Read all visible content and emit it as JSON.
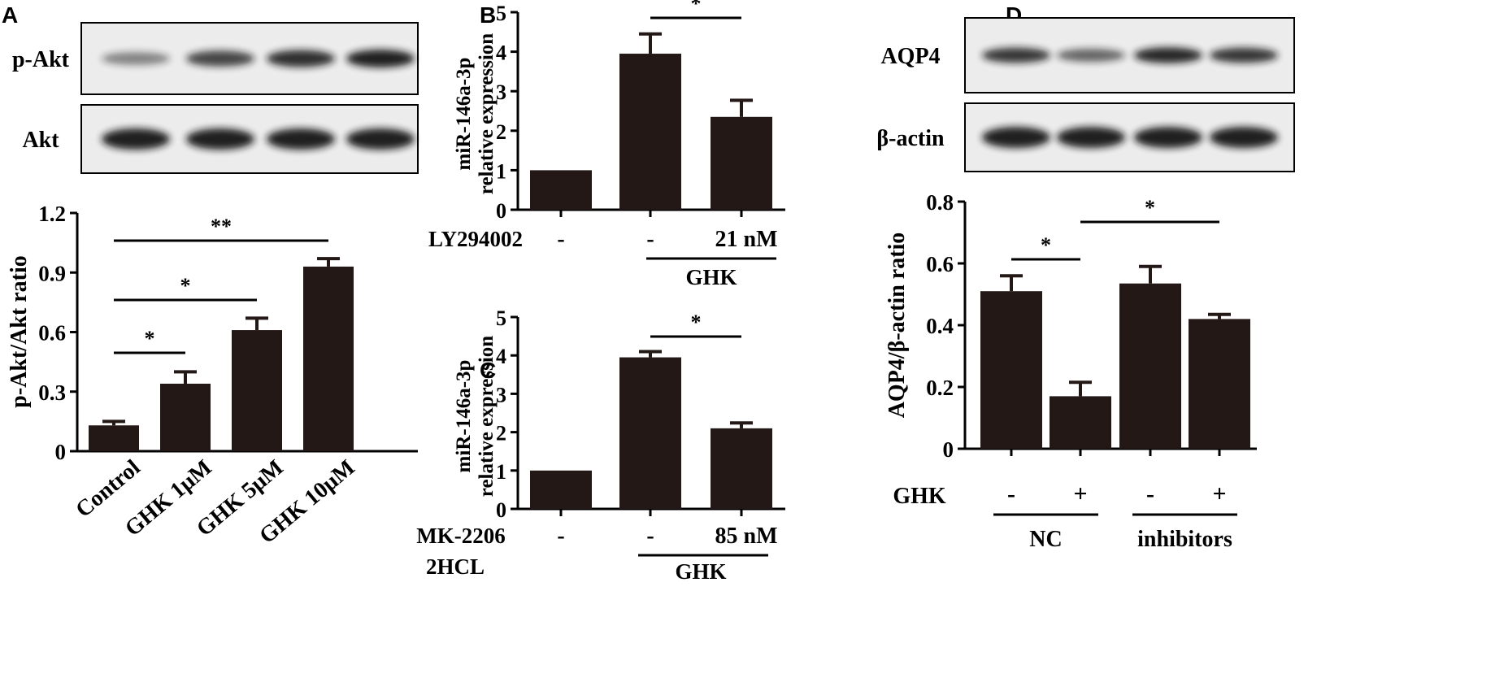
{
  "panels": {
    "A": "A",
    "B": "B",
    "C": "C",
    "D": "D"
  },
  "blots": {
    "A": [
      {
        "label": "p-Akt",
        "band_intensity": [
          0.35,
          0.75,
          0.9,
          1.0
        ]
      },
      {
        "label": "Akt",
        "band_intensity": [
          1.0,
          1.0,
          1.0,
          1.0
        ]
      }
    ],
    "D": [
      {
        "label": "AQP4",
        "band_intensity": [
          0.85,
          0.55,
          0.95,
          0.85
        ]
      },
      {
        "label": "β-actin",
        "band_intensity": [
          1.0,
          1.0,
          1.0,
          1.0
        ]
      }
    ]
  },
  "chart_data": [
    {
      "panel": "A",
      "type": "bar",
      "categories": [
        "Control",
        "GHK 1μM",
        "GHK 5μM",
        "GHK 10μM"
      ],
      "values": [
        0.13,
        0.34,
        0.61,
        0.93
      ],
      "errors": [
        0.02,
        0.06,
        0.06,
        0.04
      ],
      "ylabel": "p-Akt/Akt ratio",
      "ylim": [
        0,
        1.2
      ],
      "yticks": [
        "0",
        "0.3",
        "0.6",
        "0.9",
        "1.2"
      ],
      "yticks_values": [
        0,
        0.3,
        0.6,
        0.9,
        1.2
      ],
      "significance": [
        {
          "from": 0,
          "to": 1,
          "label": "*"
        },
        {
          "from": 0,
          "to": 2,
          "label": "*"
        },
        {
          "from": 0,
          "to": 3,
          "label": "**"
        }
      ]
    },
    {
      "panel": "B",
      "type": "bar",
      "values": [
        1.0,
        3.95,
        2.35
      ],
      "errors": [
        0,
        0.5,
        0.42
      ],
      "ylabel": [
        "miR-146a-3p",
        "relative expression"
      ],
      "ylim": [
        0,
        5
      ],
      "yticks": [
        "0",
        "1",
        "2",
        "3",
        "4",
        "5"
      ],
      "yticks_values": [
        0,
        1,
        2,
        3,
        4,
        5
      ],
      "row_labels": [
        {
          "label": "LY294002",
          "cells": [
            "-",
            "-",
            "21 nM"
          ]
        }
      ],
      "group_label": "GHK",
      "significance": [
        {
          "from": 1,
          "to": 2,
          "label": "*"
        }
      ]
    },
    {
      "panel": "C",
      "type": "bar",
      "values": [
        1.0,
        3.95,
        2.1
      ],
      "errors": [
        0,
        0.15,
        0.14
      ],
      "ylabel": [
        "miR-146a-3p",
        "relative expression"
      ],
      "ylim": [
        0,
        5
      ],
      "yticks": [
        "0",
        "1",
        "2",
        "3",
        "4",
        "5"
      ],
      "yticks_values": [
        0,
        1,
        2,
        3,
        4,
        5
      ],
      "row_labels": [
        {
          "label": "MK-2206",
          "label2": "2HCL",
          "cells": [
            "-",
            "-",
            "85 nM"
          ]
        }
      ],
      "group_label": "GHK",
      "significance": [
        {
          "from": 1,
          "to": 2,
          "label": "*"
        }
      ]
    },
    {
      "panel": "D",
      "type": "bar",
      "values": [
        0.51,
        0.17,
        0.535,
        0.42
      ],
      "errors": [
        0.05,
        0.045,
        0.055,
        0.015
      ],
      "ylabel": "AQP4/β-actin ratio",
      "ylim": [
        0,
        0.8
      ],
      "yticks": [
        "0",
        "0.2",
        "0.4",
        "0.6",
        "0.8"
      ],
      "yticks_values": [
        0,
        0.2,
        0.4,
        0.6,
        0.8
      ],
      "row_labels": [
        {
          "label": "GHK",
          "cells": [
            "-",
            "+",
            "-",
            "+"
          ]
        }
      ],
      "groups": [
        {
          "label": "NC",
          "from": 0,
          "to": 1
        },
        {
          "label": "inhibitors",
          "from": 2,
          "to": 3
        }
      ],
      "significance": [
        {
          "from": 0,
          "to": 1,
          "label": "*"
        },
        {
          "from": 1,
          "to": 3,
          "label": "*"
        }
      ]
    }
  ],
  "colors": {
    "bar": "#231815",
    "band": "#141414",
    "blot_bg": "#ececec"
  }
}
